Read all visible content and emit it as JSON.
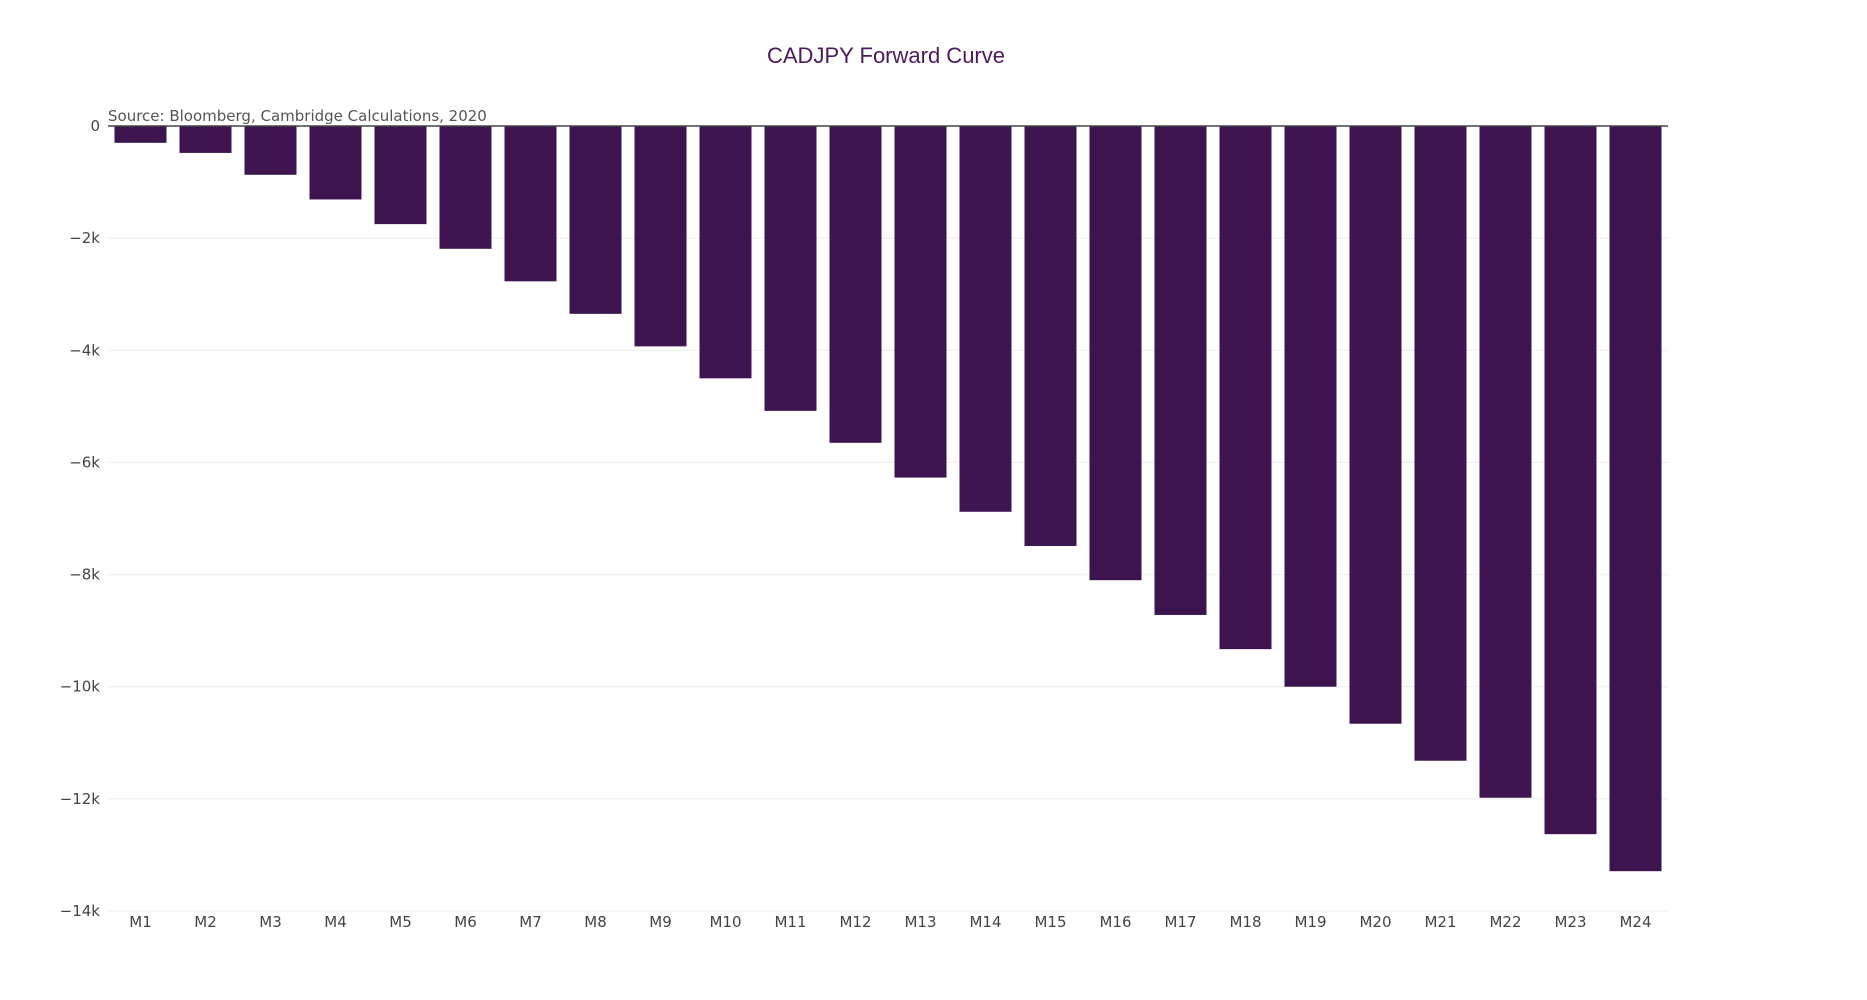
{
  "chart_data": {
    "type": "bar",
    "title": "CADJPY Forward Curve",
    "annotation": "Source: Bloomberg, Cambridge Calculations, 2020",
    "xlabel": "",
    "ylabel": "",
    "ylim": [
      -14000,
      0
    ],
    "grid": true,
    "bar_color": "#3d1450",
    "categories": [
      "M1",
      "M2",
      "M3",
      "M4",
      "M5",
      "M6",
      "M7",
      "M8",
      "M9",
      "M10",
      "M11",
      "M12",
      "M13",
      "M14",
      "M15",
      "M16",
      "M17",
      "M18",
      "M19",
      "M20",
      "M21",
      "M22",
      "M23",
      "M24"
    ],
    "values": [
      -300,
      -480,
      -870,
      -1310,
      -1750,
      -2190,
      -2770,
      -3350,
      -3930,
      -4500,
      -5080,
      -5650,
      -6270,
      -6880,
      -7490,
      -8100,
      -8720,
      -9330,
      -10000,
      -10660,
      -11320,
      -11980,
      -12630,
      -13290
    ],
    "y_ticks": [
      {
        "value": 0,
        "label": "0"
      },
      {
        "value": -2000,
        "label": "−2k"
      },
      {
        "value": -4000,
        "label": "−4k"
      },
      {
        "value": -6000,
        "label": "−6k"
      },
      {
        "value": -8000,
        "label": "−8k"
      },
      {
        "value": -10000,
        "label": "−10k"
      },
      {
        "value": -12000,
        "label": "−12k"
      },
      {
        "value": -14000,
        "label": "−14k"
      }
    ]
  }
}
